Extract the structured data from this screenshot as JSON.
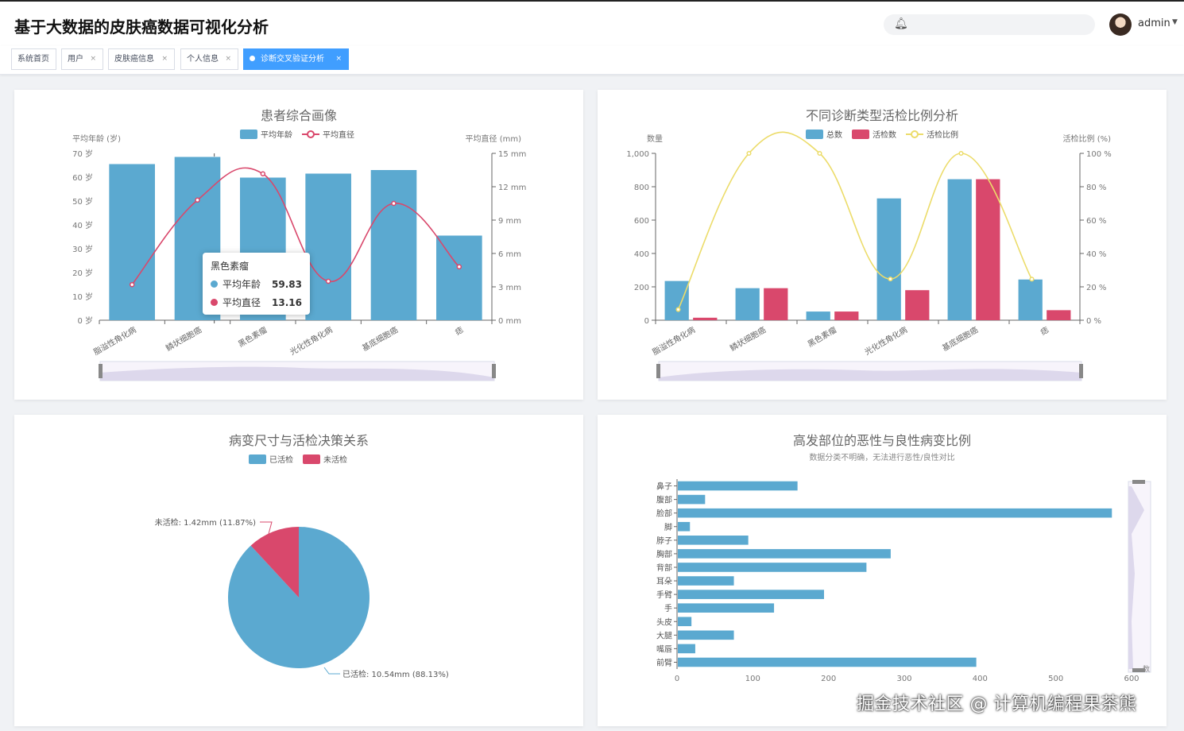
{
  "header": {
    "title": "基于大数据的皮肤癌数据可视化分析",
    "user": "admin",
    "bell_icon": "bell-icon"
  },
  "tabs": [
    {
      "label": "系统首页",
      "closable": false
    },
    {
      "label": "用户",
      "closable": true
    },
    {
      "label": "皮肤癌信息",
      "closable": true
    },
    {
      "label": "个人信息",
      "closable": true
    },
    {
      "label": "诊断交叉验证分析",
      "closable": true,
      "active": true
    }
  ],
  "tab_close": "×",
  "colors": {
    "blue": "#5ba9d0",
    "red": "#d9486c",
    "yellow": "#ecdc6a",
    "accent": "#409eff"
  },
  "chart_data": [
    {
      "type": "bar",
      "title": "患者综合画像",
      "categories": [
        "脂溢性角化病",
        "鳞状细胞癌",
        "黑色素瘤",
        "光化性角化病",
        "基底细胞癌",
        "痣"
      ],
      "series": [
        {
          "name": "平均年龄",
          "type": "bar",
          "axis": "left",
          "values": [
            65.5,
            68.5,
            59.83,
            61.5,
            63,
            35.5
          ]
        },
        {
          "name": "平均直径",
          "type": "line",
          "axis": "right",
          "values": [
            3.2,
            10.8,
            13.16,
            3.5,
            10.5,
            4.8
          ]
        }
      ],
      "ylabel_left": "平均年龄 (岁)",
      "ylabel_right": "平均直径 (mm)",
      "ylim_left": [
        0,
        70
      ],
      "yticks_left": [
        0,
        10,
        20,
        30,
        40,
        50,
        60,
        70
      ],
      "yunit_left": "岁",
      "ylim_right": [
        0,
        15
      ],
      "yticks_right": [
        0,
        3,
        6,
        9,
        12,
        15
      ],
      "yunit_right": "mm",
      "legend": "top-center",
      "tooltip": {
        "title": "黑色素瘤",
        "rows": [
          {
            "label": "平均年龄",
            "value": "59.83"
          },
          {
            "label": "平均直径",
            "value": "13.16"
          }
        ]
      }
    },
    {
      "type": "bar",
      "title": "不同诊断类型活检比例分析",
      "categories": [
        "脂溢性角化病",
        "鳞状细胞癌",
        "黑色素瘤",
        "光化性角化病",
        "基底细胞癌",
        "痣"
      ],
      "series": [
        {
          "name": "总数",
          "type": "bar",
          "axis": "left",
          "values": [
            235,
            192,
            52,
            730,
            845,
            244
          ]
        },
        {
          "name": "活检数",
          "type": "bar",
          "axis": "left",
          "values": [
            15,
            192,
            52,
            180,
            845,
            60
          ]
        },
        {
          "name": "活检比例",
          "type": "line",
          "axis": "right",
          "values": [
            6.4,
            100,
            100,
            24.7,
            100,
            24.6
          ]
        }
      ],
      "ylabel_left": "数量",
      "ylabel_right": "活检比例 (%)",
      "ylim_left": [
        0,
        1000
      ],
      "yticks_left": [
        "0",
        "200",
        "400",
        "600",
        "800",
        "1,000"
      ],
      "ylim_right": [
        0,
        100
      ],
      "yticks_right": [
        0,
        20,
        40,
        60,
        80,
        100
      ],
      "yunit_right": "%",
      "legend": "top-center"
    },
    {
      "type": "pie",
      "title": "病变尺寸与活检决策关系",
      "series": [
        {
          "name": "已活检",
          "value": 10.54,
          "label": "已活检: 10.54mm (88.13%)"
        },
        {
          "name": "未活检",
          "value": 1.42,
          "label": "未活检: 1.42mm (11.87%)"
        }
      ],
      "legend": "top-center"
    },
    {
      "type": "bar",
      "orientation": "horizontal",
      "title": "高发部位的恶性与良性病变比例",
      "subtitle": "数据分类不明确，无法进行恶性/良性对比",
      "categories": [
        "鼻子",
        "腹部",
        "脸部",
        "脚",
        "脖子",
        "胸部",
        "背部",
        "耳朵",
        "手臂",
        "手",
        "头皮",
        "大腿",
        "嘴唇",
        "前臂"
      ],
      "values": [
        158,
        36,
        573,
        16,
        93,
        281,
        249,
        74,
        193,
        127,
        18,
        74,
        23,
        394
      ],
      "xlim": [
        0,
        600
      ],
      "xticks": [
        0,
        100,
        200,
        300,
        400,
        500,
        600
      ],
      "xunit": "数"
    }
  ],
  "watermark": "掘金技术社区 @ 计算机编程果茶熊"
}
